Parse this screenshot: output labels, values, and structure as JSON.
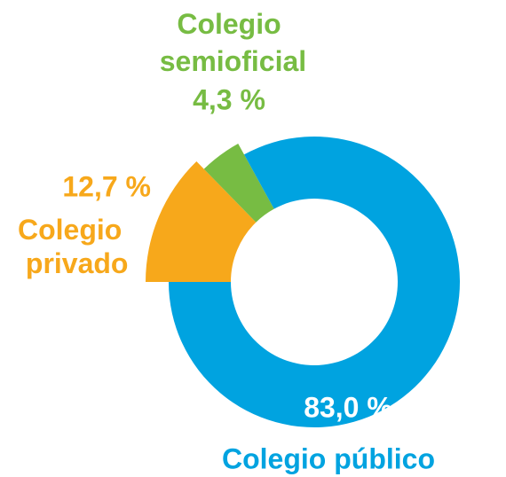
{
  "chart_data": {
    "type": "donut",
    "categories": [
      "Colegio privado",
      "Colegio semioficial",
      "Colegio público"
    ],
    "values": [
      12.7,
      4.3,
      83.0
    ],
    "value_labels": [
      "12,7 %",
      "4,3 %",
      "83,0 %"
    ],
    "colors": [
      "#f7a81b",
      "#77bc43",
      "#00a3e0"
    ]
  }
}
